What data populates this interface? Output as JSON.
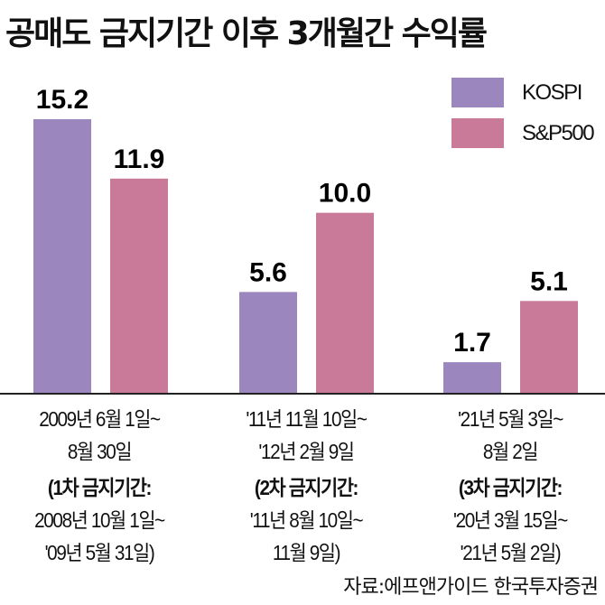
{
  "chart_data": {
    "type": "bar",
    "title": "공매도 금지기간 이후 3개월간 수익률",
    "categories": [
      {
        "lines": [
          "2009년 6월 1일~",
          "8월 30일"
        ],
        "sub": [
          "(1차 금지기간:",
          "2008년 10월 1일~",
          "'09년 5월 31일)"
        ]
      },
      {
        "lines": [
          "'11년 11월 10일~",
          "'12년 2월 9일"
        ],
        "sub": [
          "(2차 금지기간:",
          "'11년 8월 10일~",
          "11월 9일)"
        ]
      },
      {
        "lines": [
          "'21년 5월 3일~",
          "8월 2일"
        ],
        "sub": [
          "(3차 금지기간:",
          "'20년 3월 15일~",
          "'21년 5월 2일)"
        ]
      }
    ],
    "series": [
      {
        "name": "KOSPI",
        "color": "#9b86bd",
        "values": [
          15.2,
          5.6,
          1.7
        ],
        "labels": [
          "15.2",
          "5.6",
          "1.7"
        ]
      },
      {
        "name": "S&P500",
        "color": "#c97a98",
        "values": [
          11.9,
          10.0,
          5.1
        ],
        "labels": [
          "11.9",
          "10.0",
          "5.1"
        ]
      }
    ],
    "ylim": [
      0,
      16
    ],
    "legend": "top-right",
    "grid": false,
    "source": "자료:에프앤가이드 한국투자증권"
  }
}
